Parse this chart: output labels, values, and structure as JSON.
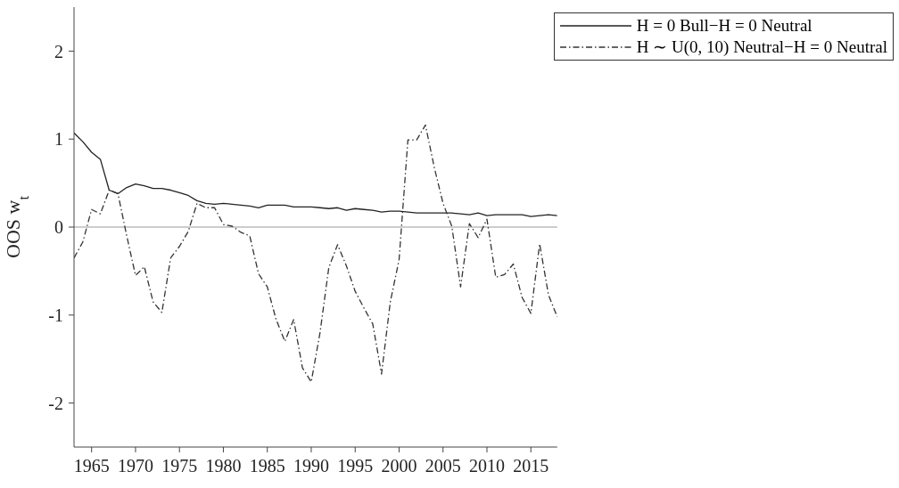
{
  "chart_data": {
    "type": "line",
    "ylabel": "OOS w$_{t}$",
    "x": [
      1963,
      1964,
      1965,
      1966,
      1967,
      1968,
      1969,
      1970,
      1971,
      1972,
      1973,
      1974,
      1975,
      1976,
      1977,
      1978,
      1979,
      1980,
      1981,
      1982,
      1983,
      1984,
      1985,
      1986,
      1987,
      1988,
      1989,
      1990,
      1991,
      1992,
      1993,
      1994,
      1995,
      1996,
      1997,
      1998,
      1999,
      2000,
      2001,
      2002,
      2003,
      2004,
      2005,
      2006,
      2007,
      2008,
      2009,
      2010,
      2011,
      2012,
      2013,
      2014,
      2015,
      2016,
      2017,
      2018
    ],
    "series": [
      {
        "name": "H = 0 Bull−H = 0 Neutral",
        "color": "#222222",
        "line_style": "solid",
        "values": [
          1.07,
          0.97,
          0.85,
          0.77,
          0.42,
          0.38,
          0.45,
          0.49,
          0.47,
          0.44,
          0.44,
          0.42,
          0.39,
          0.36,
          0.3,
          0.27,
          0.26,
          0.27,
          0.26,
          0.25,
          0.24,
          0.22,
          0.25,
          0.25,
          0.25,
          0.23,
          0.23,
          0.23,
          0.22,
          0.21,
          0.22,
          0.19,
          0.21,
          0.2,
          0.19,
          0.17,
          0.18,
          0.18,
          0.17,
          0.16,
          0.16,
          0.16,
          0.16,
          0.16,
          0.15,
          0.14,
          0.16,
          0.13,
          0.14,
          0.14,
          0.14,
          0.14,
          0.12,
          0.13,
          0.14,
          0.13
        ]
      },
      {
        "name": "H ∼ U(0, 10) Neutral−H = 0 Neutral",
        "color": "#333333",
        "line_style": "dashed",
        "values": [
          -0.35,
          -0.17,
          0.2,
          0.15,
          0.42,
          0.38,
          -0.1,
          -0.55,
          -0.45,
          -0.85,
          -0.97,
          -0.35,
          -0.22,
          -0.05,
          0.27,
          0.22,
          0.22,
          0.03,
          0.01,
          -0.06,
          -0.1,
          -0.53,
          -0.68,
          -1.05,
          -1.3,
          -1.05,
          -1.6,
          -1.76,
          -1.2,
          -0.46,
          -0.2,
          -0.44,
          -0.73,
          -0.92,
          -1.1,
          -1.67,
          -0.85,
          -0.37,
          0.99,
          0.99,
          1.16,
          0.68,
          0.27,
          0.01,
          -0.68,
          0.04,
          -0.12,
          0.09,
          -0.57,
          -0.54,
          -0.42,
          -0.8,
          -0.98,
          -0.19,
          -0.77,
          -1.02
        ]
      }
    ],
    "xlim": [
      1963,
      2018
    ],
    "xticks": [
      1965,
      1970,
      1975,
      1980,
      1985,
      1990,
      1995,
      2000,
      2005,
      2010,
      2015
    ],
    "ylim": [
      -2.5,
      2.5
    ],
    "yticks": [
      -2,
      -1,
      0,
      1,
      2
    ],
    "ref_lines": [
      {
        "axis": "y",
        "value": 0,
        "color": "#bbbbbb"
      }
    ],
    "grid": false,
    "legend": "top right",
    "marker": "none"
  }
}
